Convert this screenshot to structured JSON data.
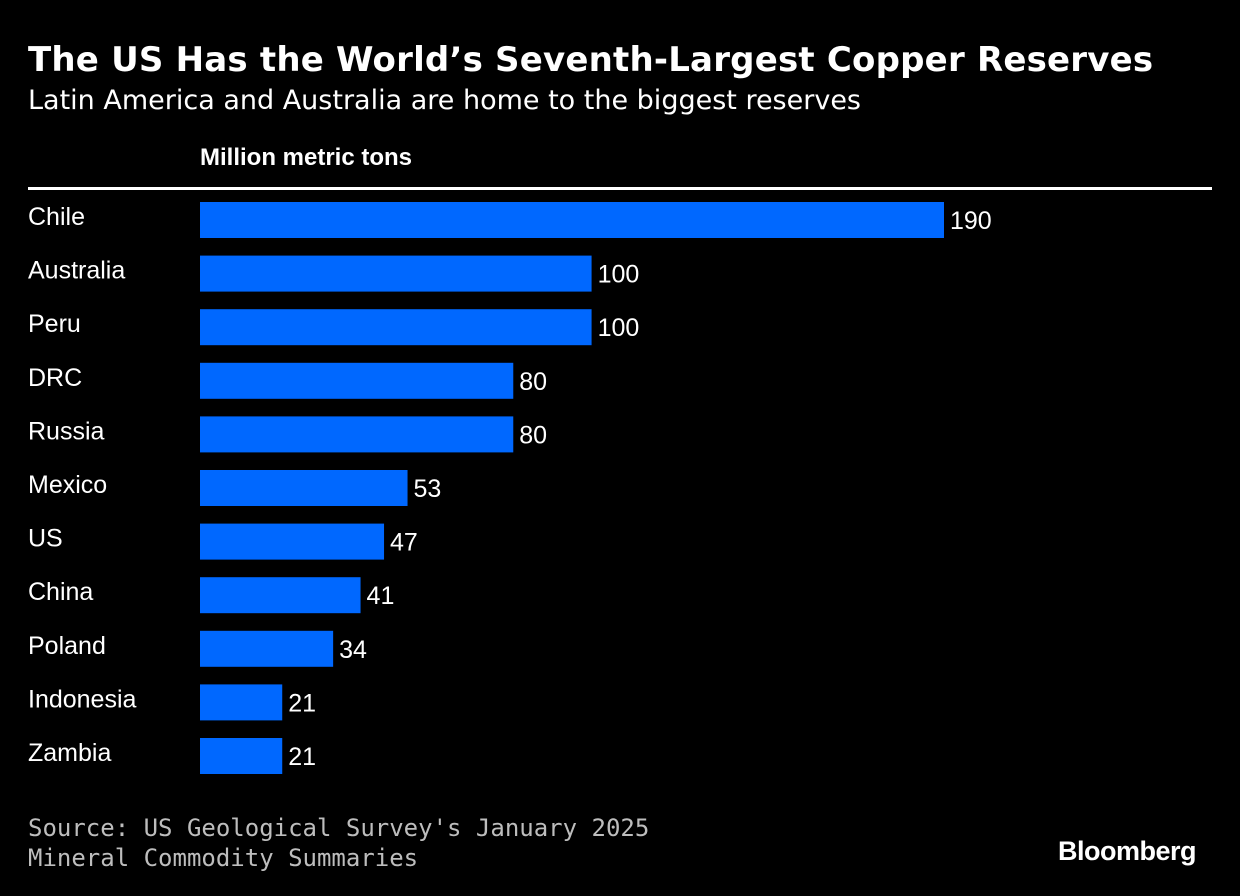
{
  "chart_data": {
    "type": "bar",
    "orientation": "horizontal",
    "title": "The US Has the World’s Seventh-Largest Copper Reserves",
    "subtitle": "Latin America and Australia are home to the biggest reserves",
    "unit_label": "Million metric tons",
    "categories": [
      "Chile",
      "Australia",
      "Peru",
      "DRC",
      "Russia",
      "Mexico",
      "US",
      "China",
      "Poland",
      "Indonesia",
      "Zambia"
    ],
    "values": [
      190,
      100,
      100,
      80,
      80,
      53,
      47,
      41,
      34,
      21,
      21
    ],
    "xlim": [
      0,
      190
    ],
    "grid": false,
    "bar_color": "#0068ff",
    "source": "Source: US Geological Survey's January 2025 Mineral Commodity Summaries",
    "brand": "Bloomberg"
  }
}
